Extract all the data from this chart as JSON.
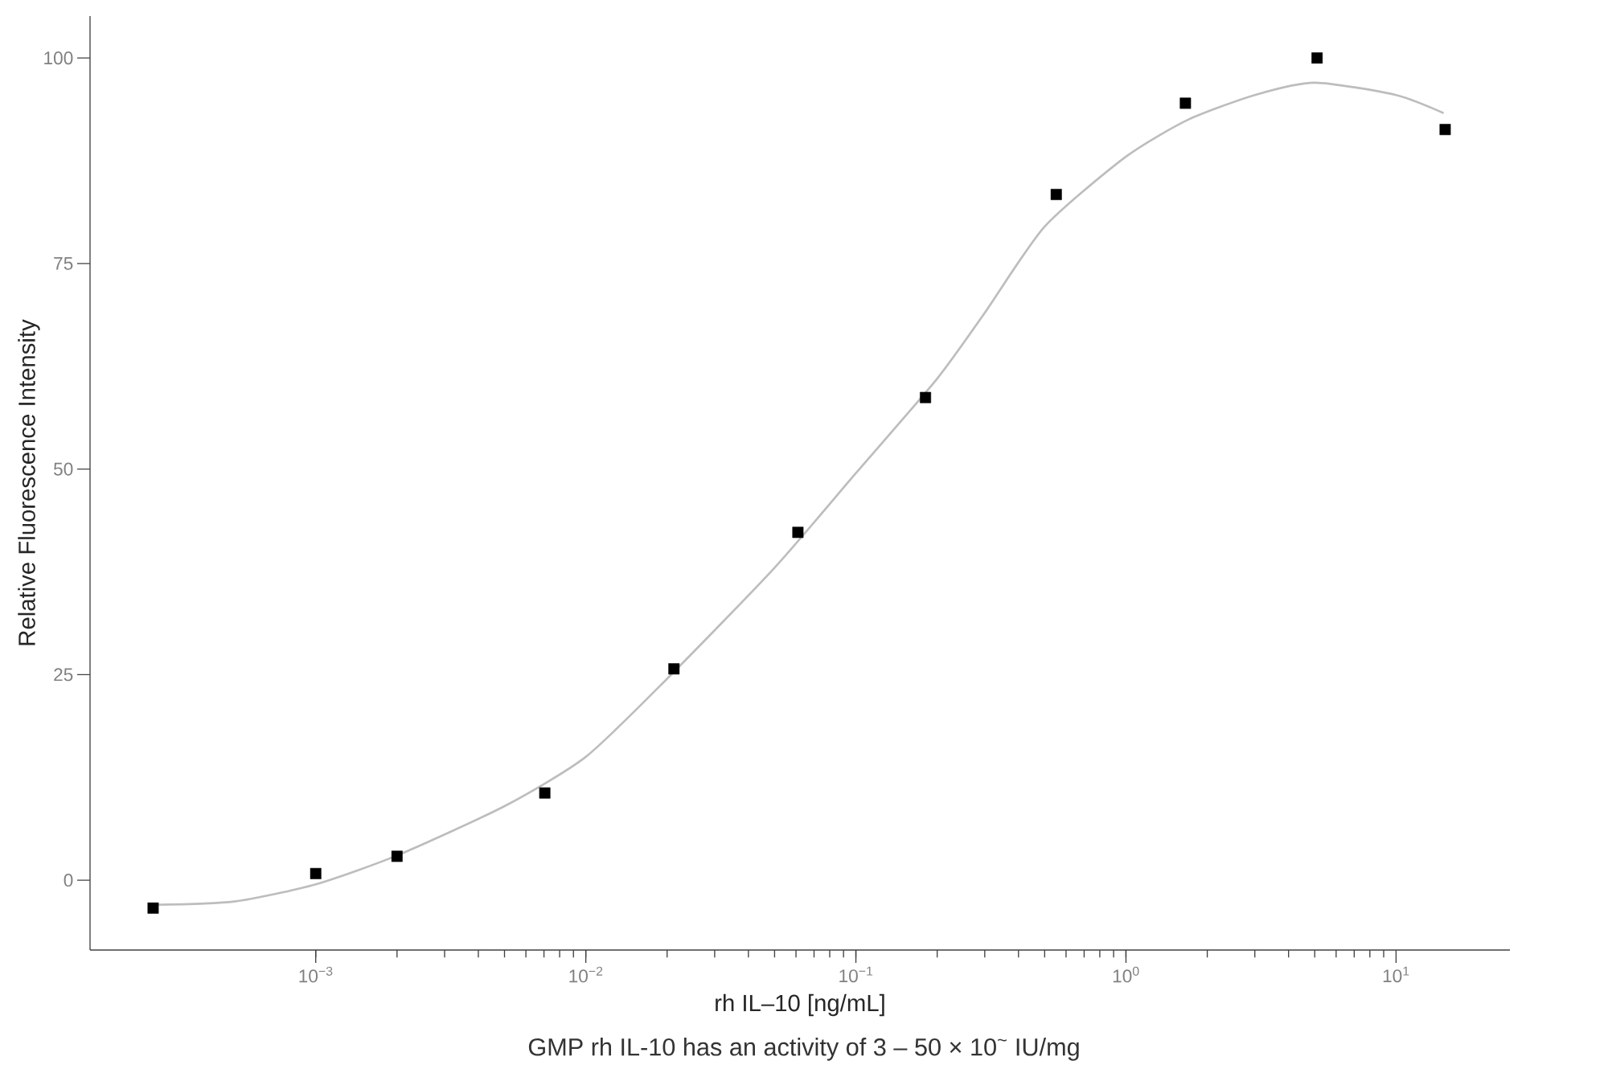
{
  "chart_data": {
    "type": "scatter",
    "xlabel": "rh IL–10 [ng/mL]",
    "ylabel": "Relative Fluorescence Intensity",
    "annotations": [
      "GMP rh IL-10 has an activity of 3 – 50 × 10$^{~}$ IU/mg"
    ],
    "log": "x",
    "xlim": [
      0.000146,
      26.4
    ],
    "ylim": [
      -8.5,
      105.1
    ],
    "xticks": [
      {
        "value": 0.001,
        "label": "10$^{−3}$"
      },
      {
        "value": 0.01,
        "label": "10$^{−2}$"
      },
      {
        "value": 0.1,
        "label": "10$^{−1}$"
      },
      {
        "value": 1,
        "label": "10$^{0}$"
      },
      {
        "value": 10,
        "label": "10$^{1}$"
      }
    ],
    "yticks": [
      0,
      25,
      50,
      75,
      100
    ],
    "series": [
      {
        "color": "#000000",
        "marker": "square",
        "x": [
          0.00025,
          0.001,
          0.002,
          0.00705,
          0.0212,
          0.061,
          0.181,
          0.552,
          1.66,
          5.1,
          15.2
        ],
        "values": [
          -3.4,
          0.8,
          2.9,
          10.6,
          25.7,
          42.3,
          58.7,
          83.4,
          94.5,
          100,
          91.3
        ]
      },
      {
        "type": "line",
        "color": "#bdbdbd",
        "marker": "none",
        "x": [
          0.00025,
          0.0005,
          0.001,
          0.002,
          0.005,
          0.01,
          0.02,
          0.05,
          0.1,
          0.2,
          0.3,
          0.5,
          1,
          1.7,
          3,
          5,
          10,
          15
        ],
        "values": [
          -3.0,
          -2.6,
          -0.5,
          3,
          9,
          15,
          24.5,
          38,
          49.5,
          61,
          69,
          79.5,
          88,
          92.5,
          95.5,
          97,
          95.5,
          93.3
        ]
      }
    ]
  }
}
